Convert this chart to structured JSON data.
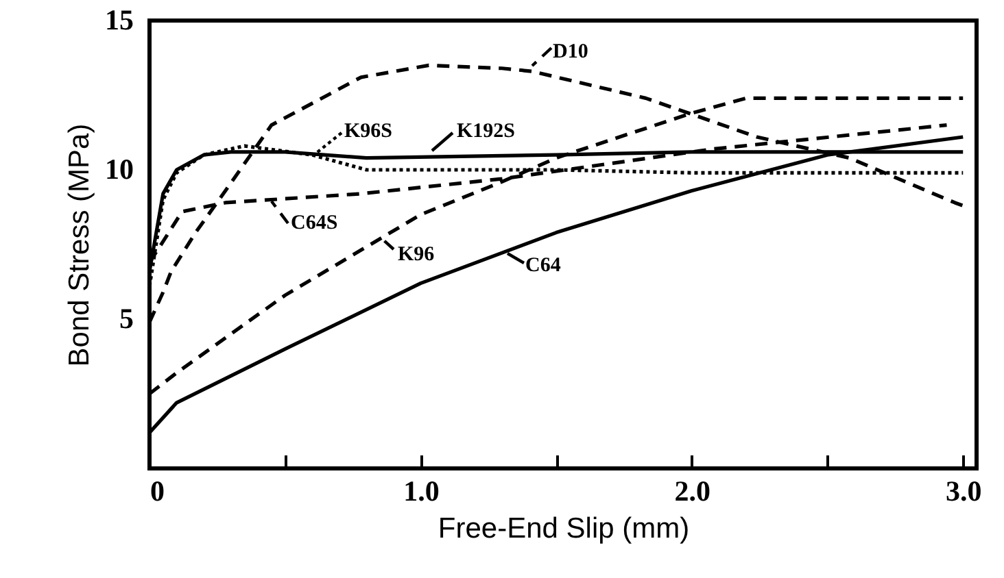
{
  "chart_data": {
    "type": "line",
    "xlabel": "Free-End  Slip (mm)",
    "ylabel": "Bond Stress (MPa)",
    "xlim": [
      0,
      3.05
    ],
    "xticks": [
      {
        "value": 0,
        "label": "0"
      },
      {
        "value": 0.5,
        "label": null
      },
      {
        "value": 1,
        "label": "1.0"
      },
      {
        "value": 1.5,
        "label": null
      },
      {
        "value": 2,
        "label": "2.0"
      },
      {
        "value": 2.5,
        "label": null
      },
      {
        "value": 3,
        "label": "3.0"
      }
    ],
    "ylim": [
      0,
      15
    ],
    "yticks": [
      5,
      10,
      15
    ],
    "grid": false,
    "marker": "none",
    "legend": "top",
    "series": [
      {
        "name": "C64",
        "color": "#000000",
        "line_style": "solid",
        "x": [
          0,
          0.1,
          0.5,
          1.0,
          1.5,
          2.0,
          2.5,
          3.0
        ],
        "values": [
          1.2,
          2.2,
          4.0,
          6.2,
          7.9,
          9.3,
          10.5,
          11.1
        ]
      },
      {
        "name": "K96",
        "color": "#000000",
        "line_style": "dashed",
        "x": [
          0,
          0.1,
          0.5,
          1.0,
          1.3,
          1.5,
          2.0,
          2.2,
          3.0
        ],
        "values": [
          2.5,
          3.2,
          5.8,
          8.5,
          9.6,
          10.4,
          11.9,
          12.4,
          12.4
        ]
      },
      {
        "name": "D10",
        "color": "#000000",
        "line_style": "dashed",
        "x": [
          0,
          0.05,
          0.08,
          0.17,
          0.28,
          0.45,
          0.78,
          1.03,
          1.3,
          1.41,
          1.83,
          2.24,
          2.58,
          2.97,
          3.0
        ],
        "values": [
          4.9,
          5.9,
          6.6,
          7.9,
          9.3,
          11.5,
          13.1,
          13.5,
          13.4,
          13.3,
          12.4,
          11.1,
          10.4,
          8.9,
          8.8
        ]
      },
      {
        "name": "C64S",
        "color": "#000000",
        "line_style": "dashed",
        "x": [
          0,
          0.05,
          0.12,
          0.28,
          0.78,
          1.3,
          2.08,
          2.94
        ],
        "values": [
          6.9,
          7.6,
          8.6,
          8.9,
          9.2,
          9.7,
          10.7,
          11.5
        ]
      },
      {
        "name": "K96S",
        "color": "#000000",
        "line_style": "dotted",
        "x": [
          0,
          0.05,
          0.1,
          0.2,
          0.35,
          0.6,
          0.8,
          1.5,
          2.0,
          3.0
        ],
        "values": [
          6.1,
          9.0,
          9.9,
          10.5,
          10.8,
          10.5,
          10.0,
          10.0,
          9.9,
          9.9
        ]
      },
      {
        "name": "K192S",
        "color": "#000000",
        "line_style": "solid",
        "x": [
          0,
          0.05,
          0.1,
          0.2,
          0.3,
          0.5,
          0.8,
          1.5,
          2.0,
          3.0
        ],
        "values": [
          6.6,
          9.2,
          10.0,
          10.5,
          10.6,
          10.6,
          10.4,
          10.5,
          10.6,
          10.6
        ]
      }
    ]
  }
}
